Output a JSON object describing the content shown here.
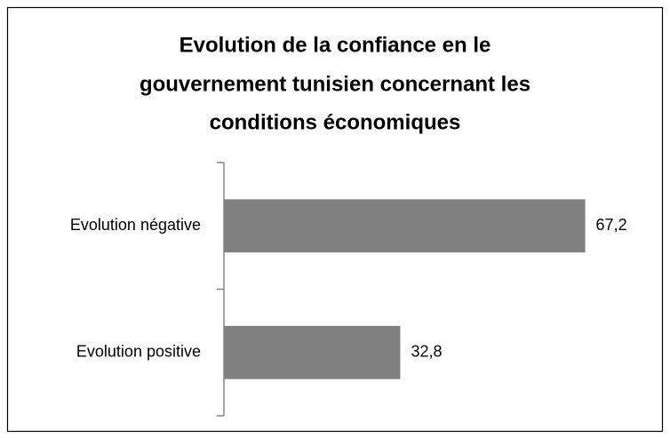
{
  "chart_data": {
    "type": "barh",
    "title": [
      "Evolution de la confiance en le",
      "gouvernement tunisien concernant les",
      "conditions économiques"
    ],
    "categories": [
      "Evolution négative",
      "Evolution positive"
    ],
    "values": [
      67.2,
      32.8
    ],
    "value_labels": [
      "67,2",
      "32,8"
    ],
    "color": "#808080",
    "xlim": [
      0,
      80
    ]
  }
}
